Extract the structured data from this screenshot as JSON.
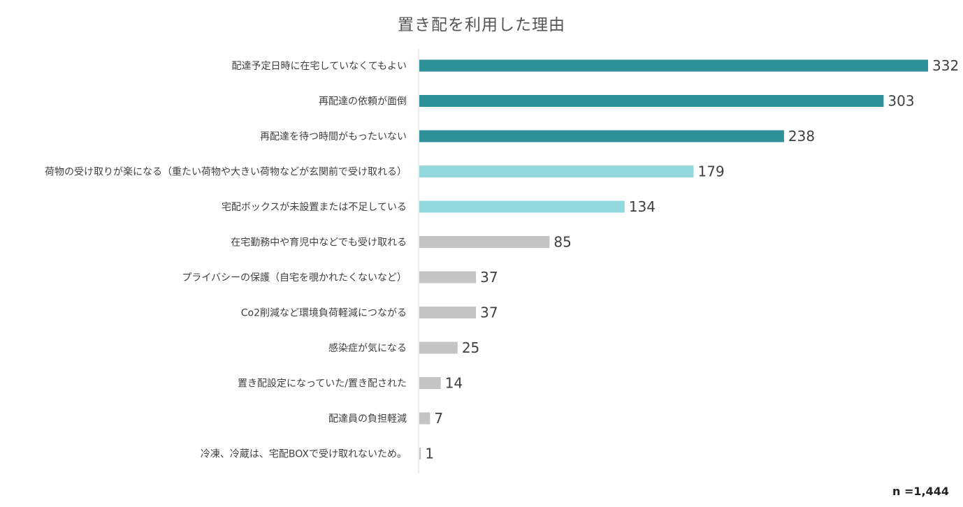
{
  "chart_data": {
    "type": "bar",
    "orientation": "horizontal",
    "title": "置き配を利用した理由",
    "categories": [
      "配達予定日時に在宅していなくてもよい",
      "再配達の依頼が面倒",
      "再配達を待つ時間がもったいない",
      "荷物の受け取りが楽になる（重たい荷物や大きい荷物などが玄関前で受け取れる）",
      "宅配ボックスが未設置または不足している",
      "在宅勤務中や育児中などでも受け取れる",
      "プライバシーの保護（自宅を覗かれたくないなど）",
      "Co2削減など環境負荷軽減につながる",
      "感染症が気になる",
      "置き配設定になっていた/置き配された",
      "配達員の負担軽減",
      "冷凍、冷蔵は、宅配BOXで受け取れないため。"
    ],
    "values": [
      332,
      303,
      238,
      179,
      134,
      85,
      37,
      37,
      25,
      14,
      7,
      1
    ],
    "value_labels": [
      "332",
      "303",
      "238",
      "179",
      "134",
      "85",
      "37",
      "37",
      "25",
      "14",
      "7",
      "1"
    ],
    "bar_colors": [
      "#2e9199",
      "#2e9199",
      "#2e9199",
      "#93d8dd",
      "#93d8dd",
      "#c4c4c4",
      "#c4c4c4",
      "#c4c4c4",
      "#c4c4c4",
      "#c4c4c4",
      "#c4c4c4",
      "#c4c4c4"
    ],
    "xlim": [
      0,
      332
    ],
    "grid": false,
    "legend": "none",
    "note": "n =1,444"
  }
}
